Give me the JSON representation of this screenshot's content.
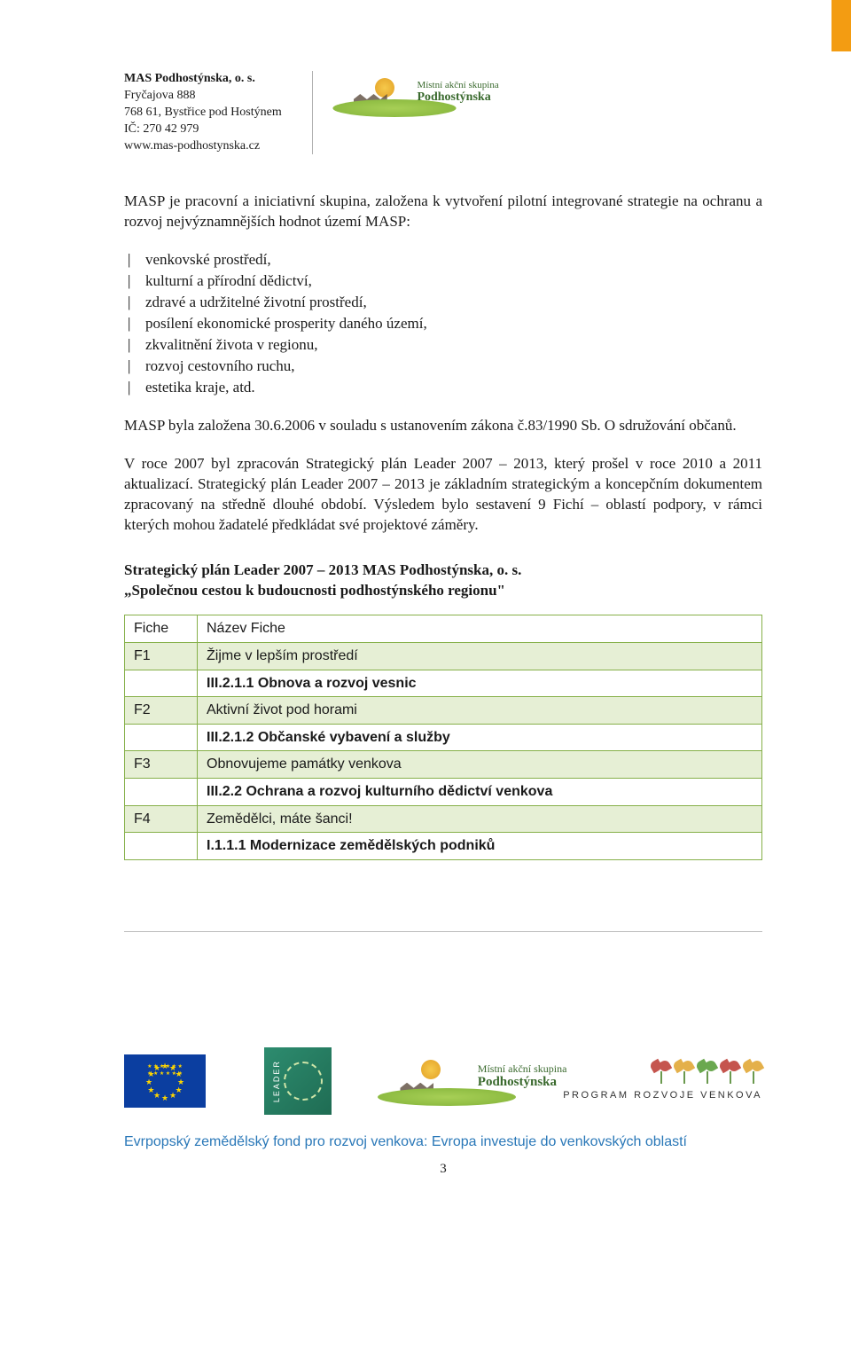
{
  "header": {
    "org_name": "MAS Podhostýnska, o. s.",
    "addr1": "Fryčajova 888",
    "addr2": "768 61, Bystřice pod Hostýnem",
    "ic": "IČ: 270 42 979",
    "web": "www.mas-podhostynska.cz",
    "logo_small1": "Místní akční skupina",
    "logo_small2": "Podhostýnska"
  },
  "intro": "MASP je pracovní a iniciativní skupina, založena k vytvoření pilotní integrované strategie na ochranu a rozvoj nejvýznamnějších hodnot území MASP:",
  "bullets": [
    "venkovské prostředí,",
    "kulturní a přírodní dědictví,",
    "zdravé a udržitelné životní prostředí,",
    "posílení ekonomické prosperity daného území,",
    "zkvalitnění života v regionu,",
    "rozvoj cestovního ruchu,",
    "estetika kraje, atd."
  ],
  "para2": "MASP byla založena 30.6.2006 v souladu s ustanovením zákona č.83/1990 Sb. O sdružování občanů.",
  "para3": "V roce 2007 byl zpracován Strategický plán Leader 2007 – 2013, který prošel v roce 2010 a 2011 aktualizací. Strategický plán Leader 2007 – 2013 je základním strategickým a koncepčním dokumentem zpracovaný na středně dlouhé období. Výsledem bylo sestavení 9 Fichí – oblastí podpory, v rámci kterých mohou žadatelé předkládat své projektové záměry.",
  "plan_heading1": "Strategický plán Leader 2007 – 2013 MAS Podhostýnska, o. s.",
  "plan_heading2": "„Společnou cestou k budoucnosti podhostýnského regionu\"",
  "table": {
    "head": [
      "Fiche",
      "Název Fiche"
    ],
    "rows": [
      [
        "F1",
        "Žijme v lepším prostředí",
        false
      ],
      [
        "",
        "III.2.1.1 Obnova a rozvoj vesnic",
        true
      ],
      [
        "F2",
        "Aktivní život pod horami",
        false
      ],
      [
        "",
        "III.2.1.2 Občanské vybavení a služby",
        true
      ],
      [
        "F3",
        "Obnovujeme památky venkova",
        false
      ],
      [
        "",
        "III.2.2 Ochrana a rozvoj kulturního dědictví venkova",
        true
      ],
      [
        "F4",
        "Zemědělci, máte šanci!",
        false
      ],
      [
        "",
        "I.1.1.1 Modernizace zemědělských podniků",
        true
      ]
    ],
    "odd_bg": "#e6efd5",
    "border_color": "#86b049"
  },
  "footer": {
    "leader_text": "LEADER",
    "prv_caption": "PROGRAM ROZVOJE VENKOVA",
    "fund_line": "Evrpopský zemědělský fond pro rozvoj venkova: Evropa investuje do venkovských oblastí",
    "page_num": "3",
    "plant_colors": [
      "#c5554e",
      "#e4b04a",
      "#6aa84f",
      "#c5554e",
      "#e4b04a"
    ]
  },
  "colors": {
    "orange_tab": "#f39c12",
    "link_blue": "#2a78b8"
  }
}
